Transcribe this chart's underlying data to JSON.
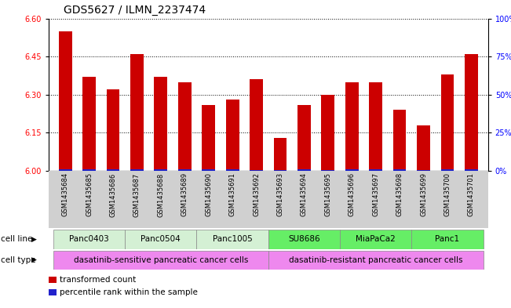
{
  "title": "GDS5627 / ILMN_2237474",
  "samples": [
    "GSM1435684",
    "GSM1435685",
    "GSM1435686",
    "GSM1435687",
    "GSM1435688",
    "GSM1435689",
    "GSM1435690",
    "GSM1435691",
    "GSM1435692",
    "GSM1435693",
    "GSM1435694",
    "GSM1435695",
    "GSM1435696",
    "GSM1435697",
    "GSM1435698",
    "GSM1435699",
    "GSM1435700",
    "GSM1435701"
  ],
  "red_values": [
    6.55,
    6.37,
    6.32,
    6.46,
    6.37,
    6.35,
    6.26,
    6.28,
    6.36,
    6.13,
    6.26,
    6.3,
    6.35,
    6.35,
    6.24,
    6.18,
    6.38,
    6.46
  ],
  "blue_values": [
    0.008,
    0.006,
    0.005,
    0.006,
    0.005,
    0.005,
    0.005,
    0.005,
    0.004,
    0.004,
    0.005,
    0.004,
    0.005,
    0.005,
    0.005,
    0.004,
    0.006,
    0.006
  ],
  "ylim_left": [
    6.0,
    6.6
  ],
  "ylim_right": [
    0,
    100
  ],
  "yticks_left": [
    6.0,
    6.15,
    6.3,
    6.45,
    6.6
  ],
  "yticks_right": [
    0,
    25,
    50,
    75,
    100
  ],
  "ytick_right_labels": [
    "0%",
    "25%",
    "50%",
    "75%",
    "100%"
  ],
  "cell_lines": [
    {
      "label": "Panc0403",
      "start": 0,
      "end": 3,
      "color": "#d4f0d4"
    },
    {
      "label": "Panc0504",
      "start": 3,
      "end": 6,
      "color": "#d4f0d4"
    },
    {
      "label": "Panc1005",
      "start": 6,
      "end": 9,
      "color": "#d4f0d4"
    },
    {
      "label": "SU8686",
      "start": 9,
      "end": 12,
      "color": "#66ee66"
    },
    {
      "label": "MiaPaCa2",
      "start": 12,
      "end": 15,
      "color": "#66ee66"
    },
    {
      "label": "Panc1",
      "start": 15,
      "end": 18,
      "color": "#66ee66"
    }
  ],
  "cell_types": [
    {
      "label": "dasatinib-sensitive pancreatic cancer cells",
      "start": 0,
      "end": 9,
      "color": "#ee88ee"
    },
    {
      "label": "dasatinib-resistant pancreatic cancer cells",
      "start": 9,
      "end": 18,
      "color": "#ee88ee"
    }
  ],
  "bar_color_red": "#cc0000",
  "bar_color_blue": "#2222cc",
  "bar_width": 0.55,
  "legend_items": [
    {
      "label": "transformed count",
      "color": "#cc0000"
    },
    {
      "label": "percentile rank within the sample",
      "color": "#2222cc"
    }
  ],
  "grid_color": "#000000",
  "bg_plot": "#ffffff",
  "bg_figure": "#ffffff",
  "title_fontsize": 10,
  "tick_fontsize": 7,
  "label_fontsize": 7.5,
  "sample_label_fontsize": 6,
  "cell_line_fontsize": 7.5,
  "cell_type_fontsize": 7.5,
  "row_label_fontsize": 7.5
}
